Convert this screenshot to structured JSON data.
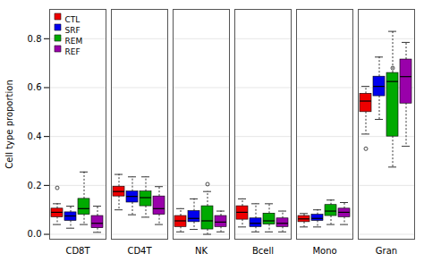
{
  "chart_data": {
    "type": "box",
    "ylabel": "Cell type proportion",
    "categories": [
      "CD8T",
      "CD4T",
      "NK",
      "Bcell",
      "Mono",
      "Gran"
    ],
    "series": [
      {
        "name": "CTL",
        "color": "#EE0000",
        "values": [
          {
            "q1": 0.07,
            "median": 0.09,
            "q3": 0.105,
            "whislo": 0.04,
            "whishi": 0.125,
            "fliers": [
              0.19
            ]
          },
          {
            "q1": 0.155,
            "median": 0.175,
            "q3": 0.195,
            "whislo": 0.1,
            "whishi": 0.245,
            "fliers": []
          },
          {
            "q1": 0.03,
            "median": 0.055,
            "q3": 0.075,
            "whislo": 0.01,
            "whishi": 0.105,
            "fliers": []
          },
          {
            "q1": 0.06,
            "median": 0.09,
            "q3": 0.115,
            "whislo": 0.03,
            "whishi": 0.145,
            "fliers": []
          },
          {
            "q1": 0.05,
            "median": 0.063,
            "q3": 0.075,
            "whislo": 0.03,
            "whishi": 0.085,
            "fliers": []
          },
          {
            "q1": 0.5,
            "median": 0.545,
            "q3": 0.575,
            "whislo": 0.41,
            "whishi": 0.605,
            "fliers": [
              0.35
            ]
          }
        ]
      },
      {
        "name": "SRF",
        "color": "#0000EE",
        "values": [
          {
            "q1": 0.055,
            "median": 0.075,
            "q3": 0.09,
            "whislo": 0.025,
            "whishi": 0.115,
            "fliers": []
          },
          {
            "q1": 0.13,
            "median": 0.155,
            "q3": 0.175,
            "whislo": 0.08,
            "whishi": 0.235,
            "fliers": []
          },
          {
            "q1": 0.05,
            "median": 0.065,
            "q3": 0.095,
            "whislo": 0.02,
            "whishi": 0.145,
            "fliers": []
          },
          {
            "q1": 0.03,
            "median": 0.045,
            "q3": 0.065,
            "whislo": 0.01,
            "whishi": 0.125,
            "fliers": []
          },
          {
            "q1": 0.055,
            "median": 0.065,
            "q3": 0.08,
            "whislo": 0.03,
            "whishi": 0.1,
            "fliers": []
          },
          {
            "q1": 0.565,
            "median": 0.605,
            "q3": 0.645,
            "whislo": 0.47,
            "whishi": 0.725,
            "fliers": []
          }
        ]
      },
      {
        "name": "REM",
        "color": "#00AA00",
        "values": [
          {
            "q1": 0.08,
            "median": 0.105,
            "q3": 0.145,
            "whislo": 0.04,
            "whishi": 0.255,
            "fliers": []
          },
          {
            "q1": 0.115,
            "median": 0.15,
            "q3": 0.175,
            "whislo": 0.07,
            "whishi": 0.235,
            "fliers": []
          },
          {
            "q1": 0.02,
            "median": 0.055,
            "q3": 0.115,
            "whislo": 0.0,
            "whishi": 0.175,
            "fliers": [
              0.205
            ]
          },
          {
            "q1": 0.04,
            "median": 0.055,
            "q3": 0.085,
            "whislo": 0.01,
            "whishi": 0.125,
            "fliers": []
          },
          {
            "q1": 0.075,
            "median": 0.095,
            "q3": 0.12,
            "whislo": 0.04,
            "whishi": 0.14,
            "fliers": []
          },
          {
            "q1": 0.4,
            "median": 0.625,
            "q3": 0.66,
            "whislo": 0.275,
            "whishi": 0.83,
            "fliers": [
              0.68
            ]
          }
        ]
      },
      {
        "name": "REF",
        "color": "#9900AA",
        "values": [
          {
            "q1": 0.025,
            "median": 0.045,
            "q3": 0.075,
            "whislo": 0.008,
            "whishi": 0.115,
            "fliers": []
          },
          {
            "q1": 0.08,
            "median": 0.105,
            "q3": 0.155,
            "whislo": 0.04,
            "whishi": 0.195,
            "fliers": []
          },
          {
            "q1": 0.03,
            "median": 0.05,
            "q3": 0.075,
            "whislo": 0.01,
            "whishi": 0.095,
            "fliers": []
          },
          {
            "q1": 0.03,
            "median": 0.045,
            "q3": 0.065,
            "whislo": 0.01,
            "whishi": 0.095,
            "fliers": []
          },
          {
            "q1": 0.07,
            "median": 0.09,
            "q3": 0.105,
            "whislo": 0.04,
            "whishi": 0.13,
            "fliers": []
          },
          {
            "q1": 0.535,
            "median": 0.645,
            "q3": 0.715,
            "whislo": 0.36,
            "whishi": 0.785,
            "fliers": []
          }
        ]
      }
    ],
    "ylim": [
      -0.02,
      0.92
    ],
    "yticks": [
      {
        "value": 0.0,
        "label": "0.0"
      },
      0.2,
      0.4,
      0.6,
      0.8
    ],
    "grid": true,
    "legend": "top-left"
  }
}
